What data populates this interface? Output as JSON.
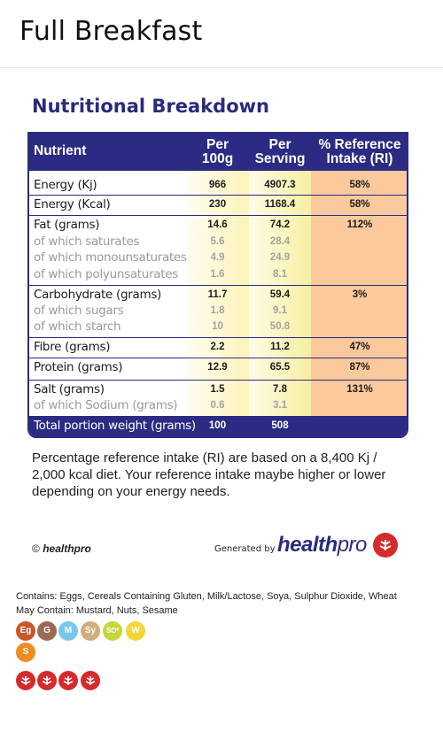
{
  "header": {
    "title": "Full Breakfast"
  },
  "table": {
    "title": "Nutritional Breakdown",
    "columns": [
      "Nutrient",
      "Per\n100g",
      "Per\nServing",
      "% Reference\nIntake (RI)"
    ],
    "col1_l1": "Per",
    "col1_l2": "100g",
    "col2_l1": "Per",
    "col2_l2": "Serving",
    "col3_l1": "% Reference",
    "col3_l2": "Intake (RI)",
    "rows": [
      {
        "name": "Energy (Kj)",
        "per100": "966",
        "perServing": "4907.3",
        "ri": "58%"
      },
      {
        "name": "Energy (Kcal)",
        "per100": "230",
        "perServing": "1168.4",
        "ri": "58%"
      },
      {
        "name": "Fat (grams)",
        "per100": "14.6",
        "perServing": "74.2",
        "ri": "112%"
      },
      {
        "name": "of which saturates",
        "per100": "5.6",
        "perServing": "28.4",
        "ri": ""
      },
      {
        "name": "of which monounsaturates",
        "per100": "4.9",
        "perServing": "24.9",
        "ri": ""
      },
      {
        "name": "of which polyunsaturates",
        "per100": "1.6",
        "perServing": "8.1",
        "ri": ""
      },
      {
        "name": "Carbohydrate (grams)",
        "per100": "11.7",
        "perServing": "59.4",
        "ri": "3%"
      },
      {
        "name": "of which sugars",
        "per100": "1.8",
        "perServing": "9.1",
        "ri": ""
      },
      {
        "name": "of which starch",
        "per100": "10",
        "perServing": "50.8",
        "ri": ""
      },
      {
        "name": "Fibre (grams)",
        "per100": "2.2",
        "perServing": "11.2",
        "ri": "47%"
      },
      {
        "name": "Protein (grams)",
        "per100": "12.9",
        "perServing": "65.5",
        "ri": "87%"
      },
      {
        "name": "Salt (grams)",
        "per100": "1.5",
        "perServing": "7.8",
        "ri": "131%"
      },
      {
        "name": "of which Sodium (grams)",
        "per100": "0.6",
        "perServing": "3.1",
        "ri": ""
      }
    ],
    "total": {
      "name": "Total portion weight (grams)",
      "per100": "100",
      "perServing": "508"
    }
  },
  "note": "Percentage reference intake (RI) are based on a 8,400 Kj / 2,000 kcal diet. Your reference intake maybe higher or lower depending on your energy needs.",
  "footer": {
    "copyright_symbol": "©",
    "copyright_brand": "healthpro",
    "generated_by": "Generated by",
    "brand_bold": "health",
    "brand_light": "pro"
  },
  "allergens": {
    "contains": "Contains: Eggs, Cereals Containing Gluten, Milk/Lactose, Soya, Sulphur Dioxide, Wheat",
    "may_contain": "May Contain: Mustard, Nuts, Sesame",
    "badges": [
      {
        "label": "Eg",
        "color": "#c8572b"
      },
      {
        "label": "G",
        "color": "#9b6a55"
      },
      {
        "label": "M",
        "color": "#79c7ea"
      },
      {
        "label": "Sy",
        "color": "#d2ad7d"
      },
      {
        "label": "SO²",
        "color": "#c6d63b"
      },
      {
        "label": "W",
        "color": "#f5d538"
      },
      {
        "label": "S",
        "color": "#f08b24"
      }
    ],
    "may_badges_icon": "healthpro-logo-icon"
  },
  "colors": {
    "navy": "#2b2b84",
    "ri_bg": "#fbc99b",
    "logo_red": "#d52b2b"
  }
}
